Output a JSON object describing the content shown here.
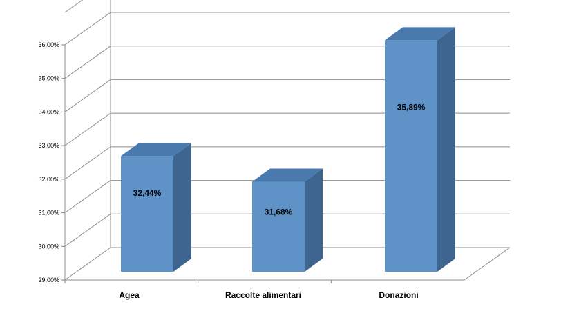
{
  "chart_data": {
    "type": "bar",
    "style": "3d-column",
    "categories": [
      "Agea",
      "Raccolte alimentari",
      "Donazioni"
    ],
    "values": [
      32.44,
      31.68,
      35.89
    ],
    "value_labels": [
      "32,44%",
      "31,68%",
      "35,89%"
    ],
    "ylim": [
      29,
      36
    ],
    "ytick_labels": [
      "29,00%",
      "30,00%",
      "31,00%",
      "32,00%",
      "33,00%",
      "34,00%",
      "35,00%",
      "36,00%"
    ],
    "grid": true,
    "legend": "none"
  },
  "colors": {
    "bar_front": "#5f93c8",
    "bar_side": "#3d6590",
    "bar_top": "#4a79ad",
    "grid": "#8c8c8c"
  }
}
